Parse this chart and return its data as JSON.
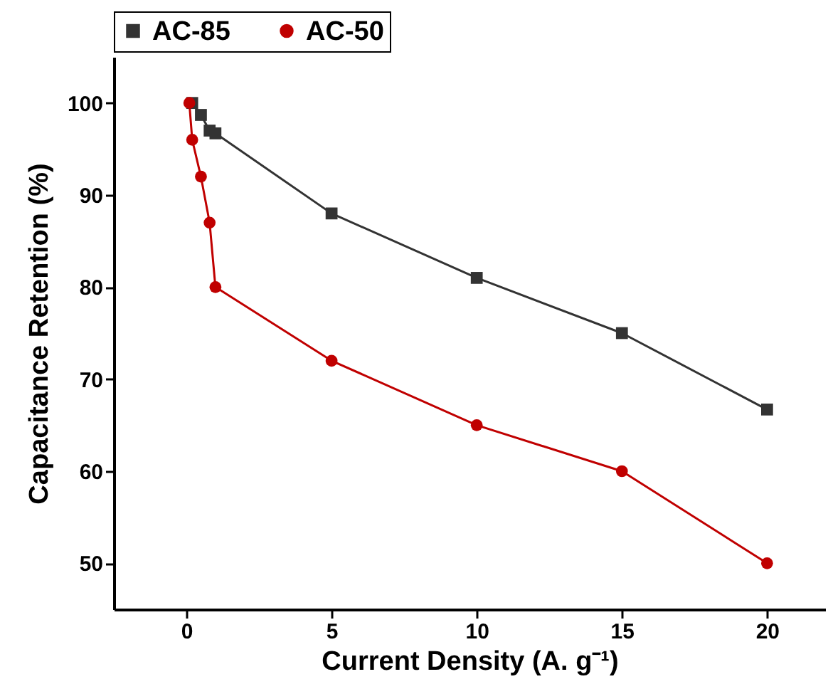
{
  "chart_data": {
    "type": "line",
    "xlabel": "Current Density (A. g⁻¹)",
    "ylabel": "Capacitance Retention (%)",
    "xlim": [
      -2.5,
      22
    ],
    "xticks": [
      0,
      5,
      10,
      15,
      20
    ],
    "ylim": [
      45,
      105
    ],
    "yticks": [
      50,
      60,
      70,
      80,
      90,
      100
    ],
    "grid": false,
    "legend": "top",
    "line_style": "solid",
    "series": [
      {
        "name": "AC-85",
        "color": "#333333",
        "marker": "square",
        "x": [
          0.2,
          0.5,
          0.8,
          1,
          5,
          10,
          15,
          20
        ],
        "values": [
          100,
          98.7,
          97,
          96.7,
          88,
          81,
          75,
          66.7
        ]
      },
      {
        "name": "AC-50",
        "color": "#c00000",
        "marker": "circle",
        "x": [
          0.1,
          0.2,
          0.5,
          0.8,
          1,
          5,
          10,
          15,
          20
        ],
        "values": [
          100,
          96,
          92,
          87,
          80,
          72,
          65,
          60,
          50
        ]
      }
    ]
  }
}
